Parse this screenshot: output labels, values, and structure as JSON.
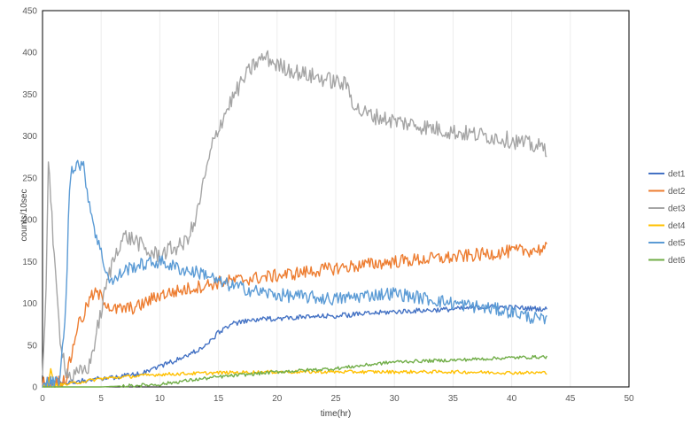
{
  "chart_data": {
    "type": "line",
    "title": "",
    "xlabel": "time(hr)",
    "ylabel": "counts/10sec",
    "xlim": [
      0,
      50
    ],
    "ylim": [
      0,
      450
    ],
    "xticks": [
      0,
      5,
      10,
      15,
      20,
      25,
      30,
      35,
      40,
      45,
      50
    ],
    "yticks": [
      0,
      50,
      100,
      150,
      200,
      250,
      300,
      350,
      400,
      450
    ],
    "grid": "vertical",
    "legend": "right",
    "noise": [
      3,
      8,
      10,
      2,
      8,
      2
    ],
    "series": [
      {
        "name": "det1",
        "color": "#4472C4",
        "x": [
          0,
          2,
          5,
          8,
          10,
          12,
          14,
          15,
          16,
          18,
          20,
          25,
          30,
          35,
          38,
          40,
          43
        ],
        "y": [
          5,
          5,
          10,
          15,
          25,
          35,
          50,
          65,
          75,
          80,
          82,
          85,
          90,
          93,
          96,
          95,
          93
        ]
      },
      {
        "name": "det2",
        "color": "#ED7D31",
        "x": [
          0,
          1,
          2,
          2.5,
          3,
          3.5,
          4,
          4.5,
          5,
          5.5,
          6,
          8,
          10,
          15,
          20,
          25,
          30,
          35,
          40,
          43
        ],
        "y": [
          5,
          5,
          10,
          40,
          75,
          85,
          105,
          112,
          108,
          100,
          92,
          95,
          110,
          125,
          133,
          142,
          150,
          155,
          162,
          165
        ]
      },
      {
        "name": "det3",
        "color": "#A5A5A5",
        "x": [
          0,
          0.3,
          0.5,
          1,
          1.5,
          2,
          2.5,
          3,
          4,
          5,
          5.5,
          6,
          6.5,
          7,
          8,
          9,
          10,
          11,
          12,
          13,
          13.5,
          14,
          14.5,
          15,
          16,
          17,
          18,
          19,
          20,
          22,
          25,
          26,
          26.5,
          27,
          28,
          30,
          33,
          35,
          38,
          40,
          42,
          43
        ],
        "y": [
          5,
          120,
          278,
          150,
          60,
          20,
          10,
          15,
          25,
          90,
          125,
          150,
          170,
          180,
          175,
          160,
          158,
          165,
          170,
          195,
          230,
          260,
          290,
          310,
          340,
          365,
          385,
          395,
          385,
          375,
          365,
          360,
          340,
          330,
          325,
          318,
          310,
          305,
          300,
          295,
          288,
          285
        ]
      },
      {
        "name": "det4",
        "color": "#FFC000",
        "x": [
          0,
          0.5,
          0.7,
          1,
          2,
          5,
          8,
          10,
          15,
          20,
          25,
          30,
          35,
          40,
          43
        ],
        "y": [
          2,
          2,
          20,
          2,
          3,
          10,
          13,
          15,
          17,
          18,
          18,
          18,
          18,
          17,
          17
        ]
      },
      {
        "name": "det5",
        "color": "#5B9BD5",
        "x": [
          0,
          1,
          1.5,
          2,
          2.3,
          2.5,
          3,
          3.5,
          4,
          4.5,
          5,
          5.5,
          6,
          7,
          8,
          10,
          12,
          14,
          15,
          18,
          20,
          25,
          28,
          30,
          35,
          40,
          42,
          43
        ],
        "y": [
          5,
          5,
          10,
          100,
          240,
          262,
          268,
          262,
          220,
          185,
          160,
          135,
          125,
          140,
          145,
          150,
          140,
          135,
          125,
          115,
          110,
          105,
          110,
          112,
          100,
          90,
          82,
          78
        ]
      },
      {
        "name": "det6",
        "color": "#70AD47",
        "x": [
          0,
          5,
          10,
          12,
          15,
          20,
          25,
          30,
          35,
          40,
          43
        ],
        "y": [
          0,
          0,
          3,
          7,
          12,
          18,
          22,
          30,
          32,
          35,
          36
        ]
      }
    ]
  }
}
